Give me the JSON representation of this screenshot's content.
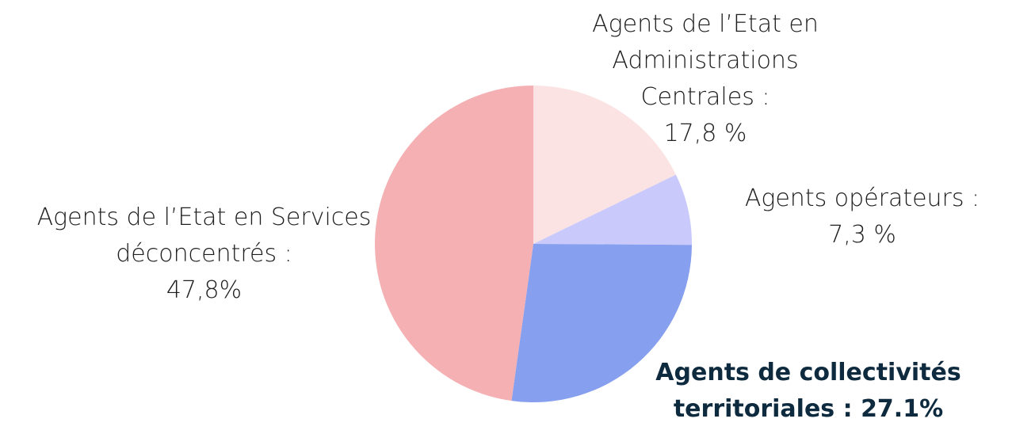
{
  "chart_data": {
    "type": "pie",
    "categories": [
      "Agents de l’Etat en Administrations Centrales :",
      "Agents opérateurs :",
      "Agents de collectivités territoriales :",
      "Agents de l’Etat en Services déconcentrés :"
    ],
    "values": [
      17.8,
      7.3,
      27.1,
      47.8
    ],
    "value_labels": [
      "17,8 %",
      "7,3 %",
      "27.1%",
      "47,8%"
    ],
    "colors": [
      "#fbe3e3",
      "#c9c9fb",
      "#869fee",
      "#f5b0b3"
    ]
  }
}
